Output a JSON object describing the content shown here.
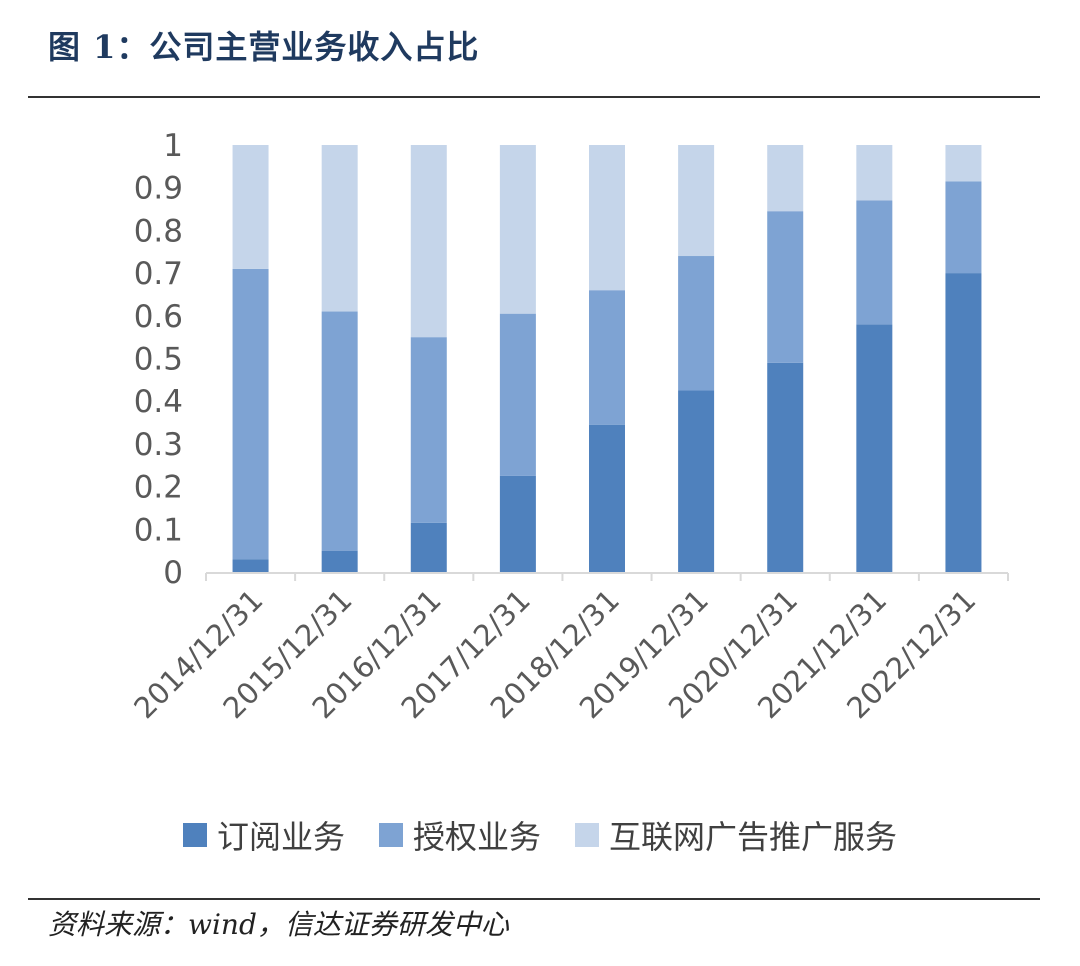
{
  "title": "图 1：公司主营业务收入占比",
  "source": "资料来源：wind，信达证券研发中心",
  "chart_data": {
    "type": "bar",
    "stacked": true,
    "title": "图 1：公司主营业务收入占比",
    "categories": [
      "2014/12/31",
      "2015/12/31",
      "2016/12/31",
      "2017/12/31",
      "2018/12/31",
      "2019/12/31",
      "2020/12/31",
      "2021/12/31",
      "2022/12/31"
    ],
    "series": [
      {
        "name": "订阅业务",
        "color": "#4f81bd",
        "values": [
          0.03,
          0.05,
          0.115,
          0.225,
          0.345,
          0.425,
          0.49,
          0.58,
          0.7
        ]
      },
      {
        "name": "授权业务",
        "color": "#7ea3d3",
        "values": [
          0.68,
          0.56,
          0.435,
          0.38,
          0.315,
          0.315,
          0.355,
          0.29,
          0.215
        ]
      },
      {
        "name": "互联网广告推广服务",
        "color": "#c5d5ea",
        "values": [
          0.29,
          0.39,
          0.45,
          0.395,
          0.34,
          0.26,
          0.155,
          0.13,
          0.085
        ]
      }
    ],
    "yticks": [
      "0",
      "0.1",
      "0.2",
      "0.3",
      "0.4",
      "0.5",
      "0.6",
      "0.7",
      "0.8",
      "0.9",
      "1"
    ],
    "ylim": [
      0,
      1
    ],
    "legend_position": "bottom",
    "grid": false
  }
}
